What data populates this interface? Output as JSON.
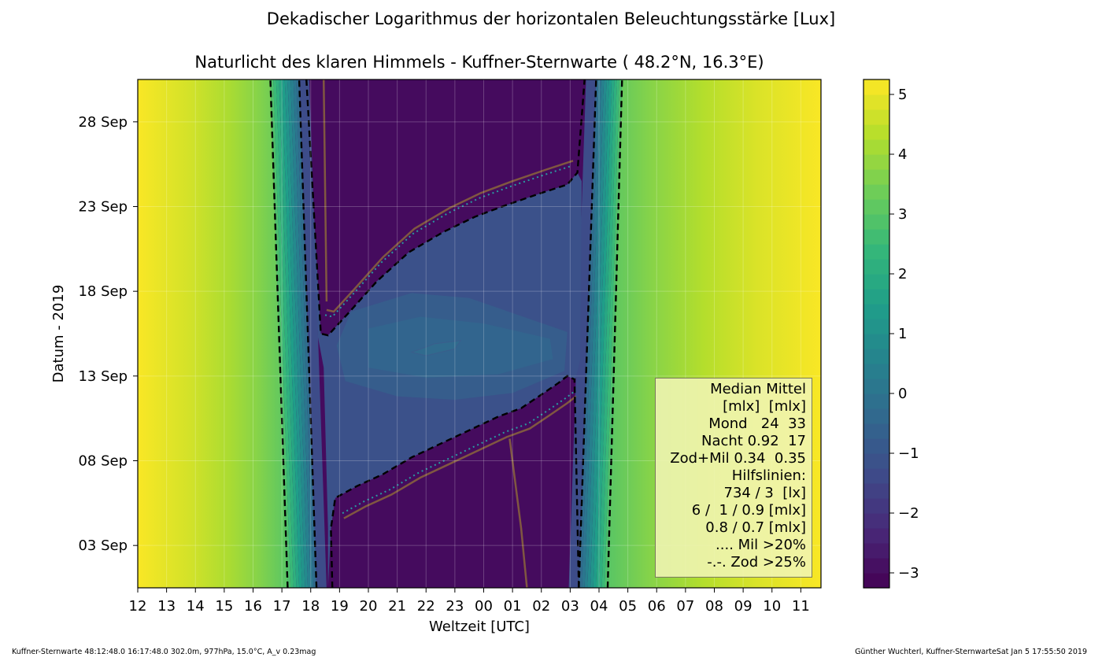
{
  "chart_data": {
    "type": "heatmap",
    "suptitle": "Dekadischer Logarithmus der horizontalen Beleuchtungsstärke [Lux]",
    "title": "Naturlicht des klaren Himmels - Kuffner-Sternwarte ( 48.2°N, 16.3°E)",
    "xlabel": "Weltzeit [UTC]",
    "ylabel": "Datum - 2019",
    "x_ticks": [
      "12",
      "13",
      "14",
      "15",
      "16",
      "17",
      "18",
      "19",
      "20",
      "21",
      "22",
      "23",
      "00",
      "01",
      "02",
      "03",
      "04",
      "05",
      "06",
      "07",
      "08",
      "09",
      "10",
      "11"
    ],
    "x_range_hours": [
      12,
      35.7
    ],
    "y_ticks": [
      "03 Sep",
      "08 Sep",
      "13 Sep",
      "18 Sep",
      "23 Sep",
      "28 Sep"
    ],
    "y_tick_days": [
      3,
      8,
      13,
      18,
      23,
      28
    ],
    "y_range_days": [
      0.5,
      30.5
    ],
    "grid": true,
    "colorbar": {
      "range": [
        -3.25,
        5.25
      ],
      "ticks": [
        "5",
        "4",
        "3",
        "2",
        "1",
        "0",
        "−1",
        "−2",
        "−3"
      ],
      "tick_values": [
        5,
        4,
        3,
        2,
        1,
        0,
        -1,
        -2,
        -3
      ],
      "colormap": "viridis"
    },
    "boundaries": {
      "sunset_outer": [
        [
          17.2,
          0.5
        ],
        [
          16.6,
          30.5
        ]
      ],
      "sunset_inner": [
        [
          18.2,
          0.5
        ],
        [
          17.6,
          30.5
        ]
      ],
      "sunrise_inner": [
        [
          27.3,
          0.5
        ],
        [
          27.9,
          30.5
        ]
      ],
      "sunrise_outer": [
        [
          28.3,
          0.5
        ],
        [
          28.8,
          30.5
        ]
      ]
    },
    "moon_lower_dashed": [
      [
        18.75,
        0.5
      ],
      [
        18.7,
        4
      ],
      [
        18.85,
        5.8
      ],
      [
        19.6,
        6.5
      ],
      [
        20.5,
        7.2
      ],
      [
        21.5,
        8.2
      ],
      [
        22.5,
        9.0
      ],
      [
        23.5,
        9.8
      ],
      [
        24.5,
        10.6
      ],
      [
        25.3,
        11.1
      ],
      [
        26.0,
        11.9
      ],
      [
        26.6,
        12.6
      ],
      [
        26.9,
        13.0
      ],
      [
        27.15,
        12.8
      ],
      [
        27.3,
        0.5
      ]
    ],
    "moon_upper_dashed": [
      [
        17.85,
        30.5
      ],
      [
        18.0,
        26
      ],
      [
        18.2,
        20
      ],
      [
        18.35,
        15.5
      ],
      [
        18.6,
        15.4
      ],
      [
        19.3,
        16.7
      ],
      [
        20.3,
        18.6
      ],
      [
        21.4,
        20.3
      ],
      [
        22.6,
        21.5
      ],
      [
        23.7,
        22.4
      ],
      [
        24.8,
        23.1
      ],
      [
        26.0,
        23.8
      ],
      [
        26.9,
        24.3
      ],
      [
        27.25,
        25.0
      ],
      [
        27.5,
        30.5
      ]
    ],
    "annotation_contour_small": [
      [
        21.5,
        14.4
      ],
      [
        22.3,
        14.9
      ],
      [
        23.2,
        15.1
      ],
      [
        23.0,
        14.6
      ],
      [
        22.0,
        14.2
      ]
    ],
    "legend": {
      "lines": [
        "Median Mittel",
        "[mlx]  [mlx]",
        "Mond   24  33",
        "Nacht 0.92  17",
        "Zod+Mil 0.34  0.35",
        "Hilfslinien:",
        "734 / 3  [lx]",
        "6 /  1 / 0.9 [mlx]",
        "0.8 / 0.7 [mlx]",
        ".... Mil >20%",
        "-.-. Zod >25%"
      ]
    },
    "colors": {
      "day": "#e6e41e",
      "night": "#471f68",
      "moon": "#3f4f8a",
      "dashed": "#000000",
      "contour_brown": "#8e6a3a",
      "contour_teal": "#2a9aa0"
    }
  },
  "footer": {
    "left": "Kuffner-Sternwarte 48:12:48.0 16:17:48.0 302.0m,  977hPa, 15.0°C, A_v 0.23mag",
    "right": "Günther Wuchterl, Kuffner-SternwarteSat Jan  5 17:55:50 2019"
  }
}
